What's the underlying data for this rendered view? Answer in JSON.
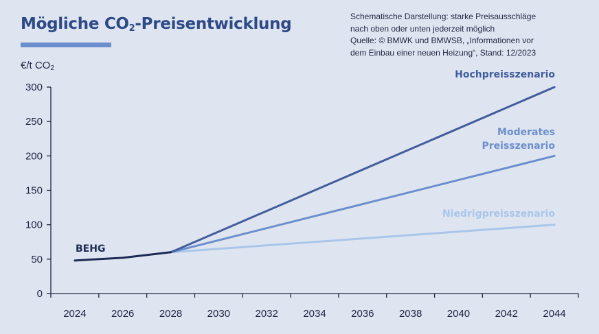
{
  "header": {
    "title_main": "Mögliche CO",
    "title_sub": "2",
    "title_rest": "-Preisentwicklung"
  },
  "note": {
    "line1": "Schematische Darstellung: starke Preisausschläge",
    "line2": "nach oben oder unten jederzeit möglich",
    "line3": "Quelle: © BMWK und BMWSB, „Informationen vor",
    "line4": "dem Einbau einer neuen Heizung“, Stand: 12/2023"
  },
  "unit": {
    "main": "€/t CO",
    "sub": "2"
  },
  "colors": {
    "background": "#dfe4f1",
    "title": "#2d4a86",
    "accent_bar": "#6b8fcc",
    "behg": "#1c2a55",
    "high": "#415d9c",
    "moderate": "#6b8fcc",
    "low": "#a9c6ea",
    "axis": "#1f2640"
  },
  "chart_data": {
    "type": "line",
    "title": "Mögliche CO₂-Preisentwicklung",
    "ylabel": "€/t CO₂",
    "xlabel": "",
    "ylim": [
      0,
      300
    ],
    "xlim": [
      2023,
      2045
    ],
    "y_ticks": [
      "0",
      "50",
      "100",
      "150",
      "200",
      "250",
      "300"
    ],
    "x_ticks": [
      "2024",
      "2026",
      "2028",
      "2030",
      "2032",
      "2034",
      "2036",
      "2038",
      "2040",
      "2042",
      "2044"
    ],
    "grid": false,
    "series": [
      {
        "name": "BEHG",
        "x": [
          2024,
          2026,
          2028
        ],
        "values": [
          48,
          52,
          60
        ],
        "color": "#1c2a55"
      },
      {
        "name": "Hochpreisszenario",
        "x": [
          2028,
          2044
        ],
        "values": [
          60,
          300
        ],
        "color": "#415d9c"
      },
      {
        "name": "Moderates Preisszenario",
        "label_lines": [
          "Moderates",
          "Preisszenario"
        ],
        "x": [
          2028,
          2044
        ],
        "values": [
          60,
          200
        ],
        "color": "#6b8fcc"
      },
      {
        "name": "Niedrigpreisszenario",
        "x": [
          2028,
          2044
        ],
        "values": [
          60,
          100
        ],
        "color": "#a9c6ea"
      }
    ]
  }
}
